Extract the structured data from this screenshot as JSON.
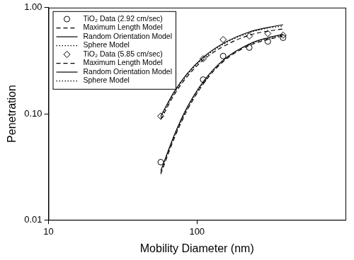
{
  "chart_data": {
    "type": "line",
    "x_label": "Mobility Diameter (nm)",
    "y_label": "Penetration",
    "log": true,
    "grid": false,
    "legend": "upper left",
    "xlim": [
      10,
      1000
    ],
    "xticks": [
      10,
      100
    ],
    "ylim": [
      0.01,
      1
    ],
    "yticks": [
      0.01,
      {
        "value": 0.1,
        "label": "0.10"
      },
      {
        "value": 1,
        "label": "1.00"
      }
    ],
    "x": [
      57,
      70,
      85,
      110,
      150,
      225,
      300,
      380
    ],
    "series": [
      {
        "name": "TiO₂ Data (2.92 cm/sec)",
        "type": "scatter",
        "marker": "circle",
        "color": "#000000",
        "values": [
          0.035,
          null,
          null,
          0.21,
          0.35,
          0.42,
          0.48,
          0.52
        ]
      },
      {
        "name": "Maximum Length Model",
        "type": "line",
        "line_style": "dashed",
        "color": "#000000",
        "values": [
          0.027,
          0.058,
          0.105,
          0.19,
          0.31,
          0.44,
          0.5,
          0.54
        ]
      },
      {
        "name": "Random Orientation Model",
        "type": "line",
        "line_style": "solid",
        "color": "#000000",
        "values": [
          0.029,
          0.062,
          0.112,
          0.2,
          0.32,
          0.455,
          0.52,
          0.56
        ]
      },
      {
        "name": "Sphere Model",
        "type": "line",
        "line_style": "dotted",
        "color": "#000000",
        "values": [
          0.028,
          0.06,
          0.108,
          0.195,
          0.315,
          0.45,
          0.51,
          0.55
        ]
      },
      {
        "name": "TiO₂ Data (5.85 cm/sec)",
        "type": "scatter",
        "marker": "diamond",
        "color": "#000000",
        "values": [
          0.095,
          null,
          null,
          0.33,
          0.5,
          0.54,
          0.57,
          0.55
        ]
      },
      {
        "name": "Maximum Length Model",
        "type": "line",
        "line_style": "dashed",
        "color": "#000000",
        "values": [
          0.088,
          0.15,
          0.22,
          0.32,
          0.43,
          0.55,
          0.6,
          0.63
        ]
      },
      {
        "name": "Random Orientation Model",
        "type": "line",
        "line_style": "solid",
        "color": "#000000",
        "values": [
          0.095,
          0.16,
          0.235,
          0.34,
          0.46,
          0.59,
          0.65,
          0.69
        ]
      },
      {
        "name": "Sphere Model",
        "type": "line",
        "line_style": "dotted",
        "color": "#000000",
        "values": [
          0.092,
          0.155,
          0.228,
          0.33,
          0.45,
          0.58,
          0.64,
          0.67
        ]
      }
    ]
  }
}
